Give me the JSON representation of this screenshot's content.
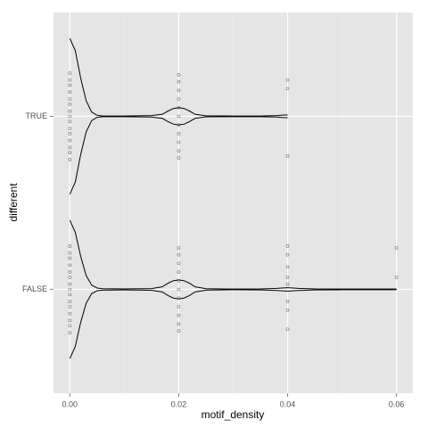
{
  "chart_data": {
    "type": "violin",
    "x_label": "motif_density",
    "y_label": "different",
    "categories": [
      "TRUE",
      "FALSE"
    ],
    "xlim": [
      -0.003,
      0.063
    ],
    "xticks": [
      {
        "value": 0,
        "label": "0.00"
      },
      {
        "value": 0.02,
        "label": "0.02"
      },
      {
        "value": 0.04,
        "label": "0.04"
      },
      {
        "value": 0.06,
        "label": "0.06"
      }
    ],
    "xminor_ticks": [
      0.01,
      0.03,
      0.05
    ],
    "grid": true,
    "line_color": "#000000",
    "point_color": "#333333",
    "series": [
      {
        "density_x": [
          0,
          0.001,
          0.002,
          0.003,
          0.004,
          0.005,
          0.006,
          0.01,
          0.015,
          0.017,
          0.018,
          0.019,
          0.02,
          0.021,
          0.022,
          0.023,
          0.025,
          0.03,
          0.035,
          0.038,
          0.039,
          0.04
        ],
        "width": [
          0.45,
          0.38,
          0.22,
          0.09,
          0.025,
          0.006,
          0.002,
          0.002,
          0.004,
          0.012,
          0.03,
          0.045,
          0.05,
          0.045,
          0.03,
          0.012,
          0.003,
          0.002,
          0.002,
          0.004,
          0.007,
          0.008
        ],
        "points_x": [
          0,
          0,
          0,
          0,
          0,
          0,
          0,
          0,
          0,
          0,
          0,
          0,
          0,
          0,
          0,
          0.02,
          0.02,
          0.02,
          0.02,
          0.02,
          0.02,
          0.02,
          0.02,
          0.02,
          0.02,
          0.02,
          0.04,
          0.04,
          0.04
        ],
        "points_offset": [
          -0.25,
          -0.21,
          -0.18,
          -0.14,
          -0.1,
          -0.07,
          -0.03,
          0,
          0.03,
          0.07,
          0.1,
          0.14,
          0.18,
          0.21,
          0.25,
          -0.24,
          -0.2,
          -0.15,
          -0.1,
          -0.05,
          0,
          0.05,
          0.1,
          0.15,
          0.2,
          0.24,
          0.21,
          0.16,
          -0.23
        ]
      },
      {
        "density_x": [
          0,
          0.001,
          0.002,
          0.003,
          0.004,
          0.005,
          0.006,
          0.01,
          0.015,
          0.017,
          0.018,
          0.019,
          0.02,
          0.021,
          0.022,
          0.023,
          0.025,
          0.03,
          0.035,
          0.038,
          0.04,
          0.042,
          0.045,
          0.05,
          0.055,
          0.06
        ],
        "width": [
          0.4,
          0.33,
          0.19,
          0.08,
          0.025,
          0.008,
          0.004,
          0.003,
          0.005,
          0.015,
          0.035,
          0.05,
          0.055,
          0.05,
          0.035,
          0.015,
          0.004,
          0.002,
          0.003,
          0.006,
          0.01,
          0.006,
          0.003,
          0.002,
          0.002,
          0.002
        ],
        "points_x": [
          0,
          0,
          0,
          0,
          0,
          0,
          0,
          0,
          0,
          0,
          0,
          0,
          0,
          0,
          0,
          0.02,
          0.02,
          0.02,
          0.02,
          0.02,
          0.02,
          0.02,
          0.02,
          0.02,
          0.02,
          0.02,
          0.04,
          0.04,
          0.04,
          0.04,
          0.04,
          0.04,
          0.04,
          0.04,
          0.06,
          0.06
        ],
        "points_offset": [
          -0.25,
          -0.21,
          -0.18,
          -0.14,
          -0.1,
          -0.07,
          -0.03,
          0,
          0.03,
          0.07,
          0.1,
          0.14,
          0.18,
          0.21,
          0.25,
          -0.24,
          -0.2,
          -0.15,
          -0.1,
          -0.05,
          0,
          0.05,
          0.1,
          0.15,
          0.2,
          0.24,
          0.25,
          0.2,
          0.13,
          0.07,
          0.03,
          -0.07,
          -0.12,
          -0.23,
          0.24,
          0.07
        ]
      }
    ]
  }
}
